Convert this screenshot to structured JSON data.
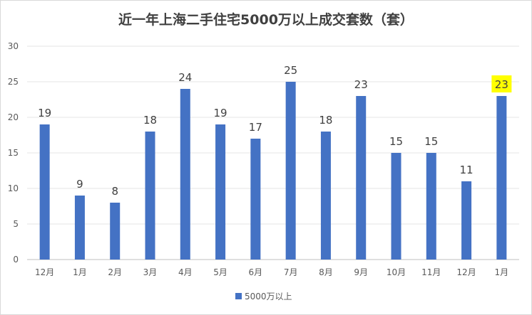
{
  "chart_data": {
    "type": "bar",
    "title": "近一年上海二手住宅5000万以上成交套数（套）",
    "categories": [
      "12月",
      "1月",
      "2月",
      "3月",
      "4月",
      "5月",
      "6月",
      "7月",
      "8月",
      "9月",
      "10月",
      "11月",
      "12月",
      "1月"
    ],
    "series": [
      {
        "name": "5000万以上",
        "values": [
          19,
          9,
          8,
          18,
          24,
          19,
          17,
          25,
          18,
          23,
          15,
          15,
          11,
          23
        ],
        "color": "#4472c4"
      }
    ],
    "yticks": [
      0,
      5,
      10,
      15,
      20,
      25,
      30
    ],
    "ylim": [
      0,
      30
    ],
    "grid": true,
    "legend": "bottom",
    "highlight": {
      "index": 13,
      "color": "#ffff00"
    }
  }
}
